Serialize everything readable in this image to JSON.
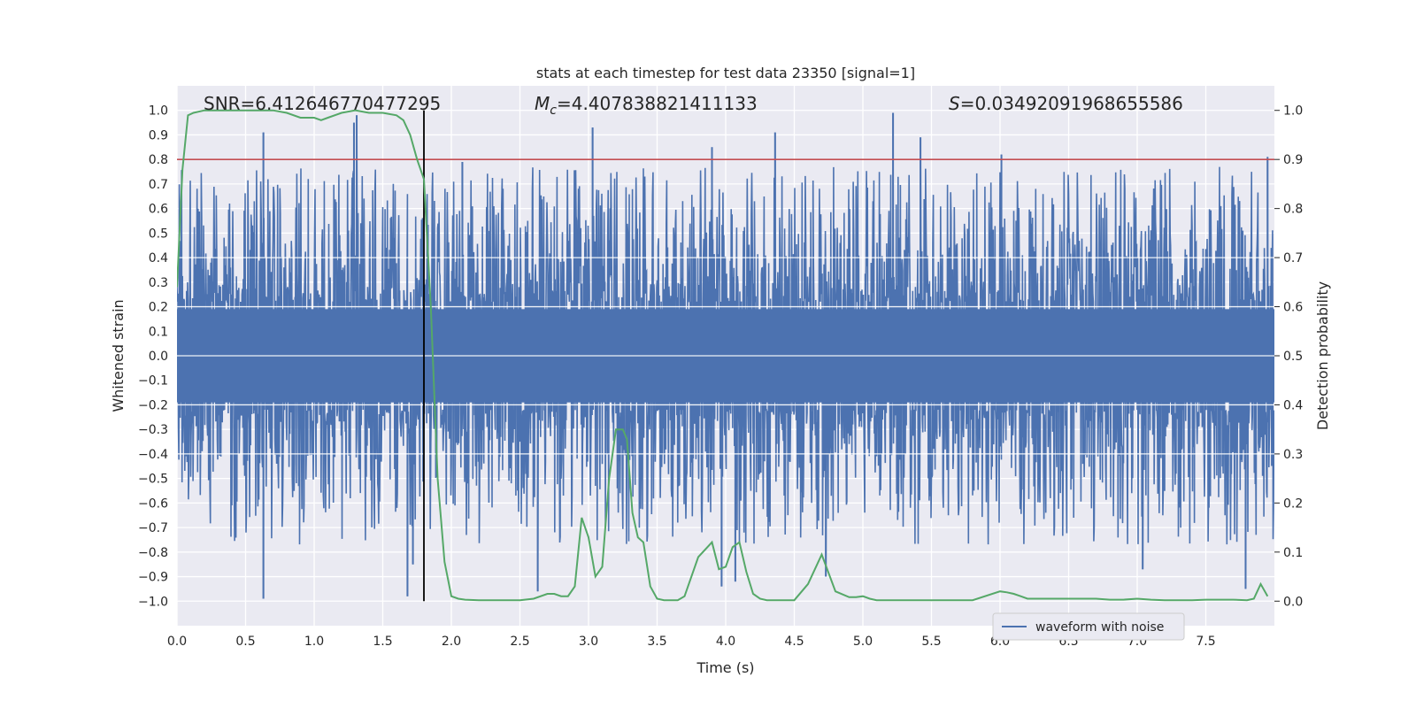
{
  "chart_data": {
    "type": "line",
    "title": "stats at each timestep for test data 23350 [signal=1]",
    "xlabel": "Time (s)",
    "ylabel_left": "Whitened strain",
    "ylabel_right": "Detection probability",
    "xlim": [
      0,
      8
    ],
    "ylim_left": [
      -1.1,
      1.1
    ],
    "ylim_right": [
      -0.05,
      1.05
    ],
    "x_ticks": [
      "0.0",
      "0.5",
      "1.0",
      "1.5",
      "2.0",
      "2.5",
      "3.0",
      "3.5",
      "4.0",
      "4.5",
      "5.0",
      "5.5",
      "6.0",
      "6.5",
      "7.0",
      "7.5"
    ],
    "y_ticks_left": [
      "1.0",
      "0.9",
      "0.8",
      "0.7",
      "0.6",
      "0.5",
      "0.4",
      "0.3",
      "0.2",
      "0.1",
      "0.0",
      "−0.1",
      "−0.2",
      "−0.3",
      "−0.4",
      "−0.5",
      "−0.6",
      "−0.7",
      "−0.8",
      "−0.9",
      "−1.0"
    ],
    "y_ticks_right": [
      "1.0",
      "0.9",
      "0.8",
      "0.7",
      "0.6",
      "0.5",
      "0.4",
      "0.3",
      "0.2",
      "0.1",
      "0.0"
    ],
    "annotations": {
      "snr_label": "SNR=6.412646770477295",
      "mc_symbol": "M",
      "mc_subscript": "c",
      "mc_value": "=4.407838821411133",
      "s_symbol": "S",
      "s_value": "=0.03492091968655586"
    },
    "threshold_probability": 0.9,
    "merger_time": 1.8,
    "waveform": {
      "name": "waveform with noise",
      "color": "#4c72b0",
      "description_range": [
        -1.0,
        1.0
      ],
      "spikes": [
        {
          "t": 0.63,
          "v": 0.91
        },
        {
          "t": 1.29,
          "v": 0.95
        },
        {
          "t": 1.31,
          "v": 0.98
        },
        {
          "t": 3.03,
          "v": 0.93
        },
        {
          "t": 3.9,
          "v": 0.85
        },
        {
          "t": 4.36,
          "v": 0.91
        },
        {
          "t": 5.22,
          "v": 0.99
        },
        {
          "t": 5.42,
          "v": 0.89
        },
        {
          "t": 0.63,
          "v": -0.99
        },
        {
          "t": 1.68,
          "v": -0.98
        },
        {
          "t": 2.63,
          "v": -0.96
        },
        {
          "t": 3.97,
          "v": -0.94
        },
        {
          "t": 4.07,
          "v": -0.92
        },
        {
          "t": 4.73,
          "v": -0.9
        },
        {
          "t": 7.79,
          "v": -0.95
        },
        {
          "t": 7.04,
          "v": -0.87
        },
        {
          "t": 1.72,
          "v": -0.85
        },
        {
          "t": 6.01,
          "v": 0.82
        },
        {
          "t": 7.95,
          "v": 0.81
        },
        {
          "t": 2.08,
          "v": 0.79
        }
      ]
    },
    "probability_series": {
      "name": "detection probability",
      "color": "#55a868",
      "x": [
        0,
        0.04,
        0.08,
        0.12,
        0.2,
        0.3,
        0.5,
        0.7,
        0.8,
        0.9,
        1.0,
        1.05,
        1.1,
        1.2,
        1.3,
        1.4,
        1.5,
        1.6,
        1.65,
        1.7,
        1.75,
        1.8,
        1.85,
        1.9,
        1.95,
        2.0,
        2.05,
        2.1,
        2.2,
        2.3,
        2.5,
        2.6,
        2.7,
        2.75,
        2.8,
        2.85,
        2.9,
        2.95,
        3.0,
        3.05,
        3.1,
        3.15,
        3.2,
        3.25,
        3.28,
        3.32,
        3.36,
        3.4,
        3.45,
        3.5,
        3.55,
        3.6,
        3.65,
        3.7,
        3.8,
        3.9,
        3.95,
        4.0,
        4.05,
        4.1,
        4.15,
        4.2,
        4.25,
        4.3,
        4.35,
        4.4,
        4.45,
        4.5,
        4.6,
        4.7,
        4.8,
        4.9,
        4.95,
        5.0,
        5.05,
        5.1,
        5.15,
        5.2,
        5.3,
        5.4,
        5.5,
        5.6,
        5.8,
        6.0,
        6.05,
        6.1,
        6.15,
        6.2,
        6.3,
        6.4,
        6.5,
        6.6,
        6.7,
        6.8,
        6.9,
        7.0,
        7.1,
        7.2,
        7.3,
        7.4,
        7.5,
        7.6,
        7.7,
        7.8,
        7.85,
        7.9,
        7.95
      ],
      "y": [
        0.64,
        0.88,
        0.99,
        0.995,
        1.0,
        1.0,
        1.0,
        1.0,
        0.995,
        0.985,
        0.985,
        0.98,
        0.985,
        0.995,
        1.0,
        0.995,
        0.995,
        0.99,
        0.98,
        0.95,
        0.9,
        0.86,
        0.6,
        0.25,
        0.08,
        0.01,
        0.005,
        0.003,
        0.002,
        0.002,
        0.002,
        0.005,
        0.015,
        0.015,
        0.01,
        0.01,
        0.03,
        0.17,
        0.13,
        0.05,
        0.07,
        0.25,
        0.35,
        0.35,
        0.33,
        0.18,
        0.13,
        0.12,
        0.03,
        0.005,
        0.002,
        0.002,
        0.002,
        0.01,
        0.09,
        0.12,
        0.065,
        0.07,
        0.11,
        0.12,
        0.06,
        0.015,
        0.005,
        0.002,
        0.002,
        0.002,
        0.002,
        0.002,
        0.035,
        0.095,
        0.02,
        0.008,
        0.008,
        0.01,
        0.005,
        0.002,
        0.002,
        0.002,
        0.002,
        0.002,
        0.002,
        0.002,
        0.002,
        0.02,
        0.018,
        0.015,
        0.01,
        0.005,
        0.005,
        0.005,
        0.005,
        0.005,
        0.005,
        0.003,
        0.003,
        0.005,
        0.003,
        0.002,
        0.002,
        0.002,
        0.003,
        0.003,
        0.003,
        0.002,
        0.005,
        0.035,
        0.01
      ]
    },
    "colors": {
      "background": "#eaeaf2",
      "grid": "#ffffff",
      "threshold": "#c44e52",
      "merger_line": "#000000"
    },
    "legend": {
      "label": "waveform with noise",
      "placement": "lower-right"
    }
  }
}
